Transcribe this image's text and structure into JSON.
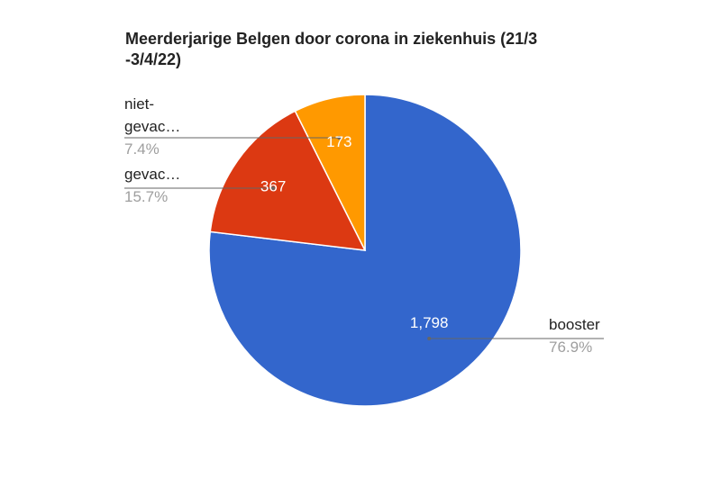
{
  "chart_data": {
    "type": "pie",
    "title_lines": [
      "Meerderjarige Belgen door corona in ziekenhuis (21/3",
      "-3/4/22)"
    ],
    "slices": [
      {
        "name": "booster",
        "label_lines": [
          "booster"
        ],
        "value": 1798,
        "value_label": "1,798",
        "percent_label": "76.9%",
        "color": "#3366cc"
      },
      {
        "name": "gevaccineerd",
        "label_lines": [
          "gevac…"
        ],
        "value": 367,
        "value_label": "367",
        "percent_label": "15.7%",
        "color": "#dc3912"
      },
      {
        "name": "niet-gevaccineerd",
        "label_lines": [
          "niet-",
          "gevac…"
        ],
        "value": 173,
        "value_label": "173",
        "percent_label": "7.4%",
        "color": "#ff9900"
      }
    ],
    "legend": "labeled slices"
  }
}
